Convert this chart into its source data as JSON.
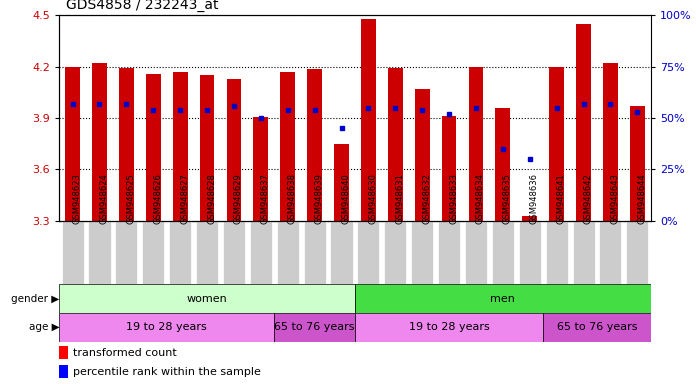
{
  "title": "GDS4858 / 232243_at",
  "samples": [
    "GSM948623",
    "GSM948624",
    "GSM948625",
    "GSM948626",
    "GSM948627",
    "GSM948628",
    "GSM948629",
    "GSM948637",
    "GSM948638",
    "GSM948639",
    "GSM948640",
    "GSM948630",
    "GSM948631",
    "GSM948632",
    "GSM948633",
    "GSM948634",
    "GSM948635",
    "GSM948636",
    "GSM948641",
    "GSM948642",
    "GSM948643",
    "GSM948644"
  ],
  "transformed_count": [
    4.2,
    4.22,
    4.195,
    4.155,
    4.17,
    4.15,
    4.13,
    3.905,
    4.17,
    4.185,
    3.75,
    4.48,
    4.195,
    4.07,
    3.91,
    4.2,
    3.96,
    3.33,
    4.2,
    4.45,
    4.22,
    3.97
  ],
  "percentile_rank": [
    57,
    57,
    57,
    54,
    54,
    54,
    56,
    50,
    54,
    54,
    45,
    55,
    55,
    54,
    52,
    55,
    35,
    30,
    55,
    57,
    57,
    53
  ],
  "ylim_left": [
    3.3,
    4.5
  ],
  "ylim_right": [
    0,
    100
  ],
  "yticks_left": [
    3.3,
    3.6,
    3.9,
    4.2,
    4.5
  ],
  "yticks_right": [
    0,
    25,
    50,
    75,
    100
  ],
  "bar_color": "#cc0000",
  "dot_color": "#0000cc",
  "bar_bottom": 3.3,
  "gender_groups": [
    {
      "label": "women",
      "start": 0,
      "end": 11,
      "color": "#ccffcc"
    },
    {
      "label": "men",
      "start": 11,
      "end": 22,
      "color": "#44dd44"
    }
  ],
  "age_groups": [
    {
      "label": "19 to 28 years",
      "start": 0,
      "end": 8,
      "color": "#ee88ee"
    },
    {
      "label": "65 to 76 years",
      "start": 8,
      "end": 11,
      "color": "#cc55cc"
    },
    {
      "label": "19 to 28 years",
      "start": 11,
      "end": 18,
      "color": "#ee88ee"
    },
    {
      "label": "65 to 76 years",
      "start": 18,
      "end": 22,
      "color": "#cc55cc"
    }
  ],
  "gender_label": "gender",
  "age_label": "age",
  "legend_red_label": "transformed count",
  "legend_blue_label": "percentile rank within the sample",
  "tick_bg_color": "#cccccc",
  "title_fontsize": 10,
  "axis_tick_fontsize": 8,
  "sample_fontsize": 6,
  "row_fontsize": 8,
  "legend_fontsize": 8
}
